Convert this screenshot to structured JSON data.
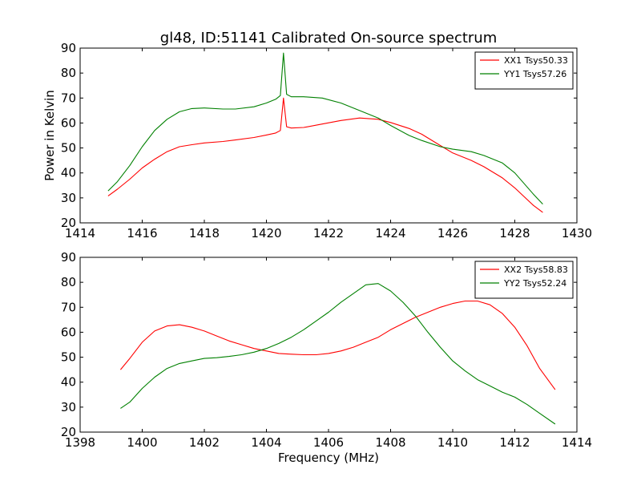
{
  "title": "gl48, ID:51141 Calibrated On-source spectrum",
  "ylabel": "Power in Kelvin",
  "xlabel": "Frequency (MHz)",
  "chart_data": [
    {
      "type": "line",
      "title": "gl48, ID:51141 Calibrated On-source spectrum",
      "ylabel": "Power in Kelvin",
      "xlabel": "",
      "xlim": [
        1414,
        1430
      ],
      "ylim": [
        20,
        90
      ],
      "xticks": [
        "1414",
        "1416",
        "1418",
        "1420",
        "1422",
        "1424",
        "1426",
        "1428",
        "1430"
      ],
      "yticks": [
        "20",
        "30",
        "40",
        "50",
        "60",
        "70",
        "80",
        "90"
      ],
      "legend_position": "top-right",
      "series": [
        {
          "name": "XX1 Tsys50.33",
          "color": "#ff0000",
          "points": [
            [
              1414.9,
              30.8
            ],
            [
              1415.2,
              33.5
            ],
            [
              1415.6,
              37.5
            ],
            [
              1416.0,
              42.0
            ],
            [
              1416.4,
              45.5
            ],
            [
              1416.8,
              48.5
            ],
            [
              1417.2,
              50.5
            ],
            [
              1417.6,
              51.3
            ],
            [
              1418.0,
              52.0
            ],
            [
              1418.6,
              52.6
            ],
            [
              1419.0,
              53.2
            ],
            [
              1419.6,
              54.2
            ],
            [
              1420.0,
              55.2
            ],
            [
              1420.3,
              56.0
            ],
            [
              1420.45,
              57.0
            ],
            [
              1420.55,
              70.0
            ],
            [
              1420.65,
              58.5
            ],
            [
              1420.8,
              58.0
            ],
            [
              1421.2,
              58.2
            ],
            [
              1421.8,
              59.6
            ],
            [
              1422.4,
              61.0
            ],
            [
              1423.0,
              62.0
            ],
            [
              1423.6,
              61.5
            ],
            [
              1424.0,
              60.2
            ],
            [
              1424.6,
              57.8
            ],
            [
              1425.0,
              55.5
            ],
            [
              1425.6,
              51.0
            ],
            [
              1426.0,
              48.0
            ],
            [
              1426.6,
              45.0
            ],
            [
              1427.0,
              42.5
            ],
            [
              1427.6,
              38.0
            ],
            [
              1428.0,
              34.0
            ],
            [
              1428.6,
              27.0
            ],
            [
              1428.9,
              24.2
            ]
          ]
        },
        {
          "name": "YY1 Tsys57.26",
          "color": "#008000",
          "points": [
            [
              1414.9,
              32.8
            ],
            [
              1415.2,
              36.5
            ],
            [
              1415.6,
              43.0
            ],
            [
              1416.0,
              50.5
            ],
            [
              1416.4,
              57.0
            ],
            [
              1416.8,
              61.5
            ],
            [
              1417.2,
              64.5
            ],
            [
              1417.6,
              65.8
            ],
            [
              1418.0,
              66.0
            ],
            [
              1418.6,
              65.6
            ],
            [
              1419.0,
              65.6
            ],
            [
              1419.6,
              66.5
            ],
            [
              1420.0,
              68.0
            ],
            [
              1420.3,
              69.5
            ],
            [
              1420.45,
              71.0
            ],
            [
              1420.55,
              88.0
            ],
            [
              1420.65,
              71.5
            ],
            [
              1420.8,
              70.5
            ],
            [
              1421.2,
              70.5
            ],
            [
              1421.8,
              70.0
            ],
            [
              1422.4,
              68.0
            ],
            [
              1423.0,
              65.0
            ],
            [
              1423.6,
              62.0
            ],
            [
              1424.0,
              59.0
            ],
            [
              1424.6,
              55.0
            ],
            [
              1425.0,
              53.0
            ],
            [
              1425.6,
              50.5
            ],
            [
              1426.0,
              49.5
            ],
            [
              1426.6,
              48.5
            ],
            [
              1427.0,
              47.0
            ],
            [
              1427.6,
              44.0
            ],
            [
              1428.0,
              40.0
            ],
            [
              1428.6,
              31.5
            ],
            [
              1428.9,
              27.5
            ]
          ]
        }
      ]
    },
    {
      "type": "line",
      "title": "",
      "ylabel": "",
      "xlabel": "Frequency (MHz)",
      "xlim": [
        1398,
        1414
      ],
      "ylim": [
        20,
        90
      ],
      "xticks": [
        "1398",
        "1400",
        "1402",
        "1404",
        "1406",
        "1408",
        "1410",
        "1412",
        "1414"
      ],
      "yticks": [
        "20",
        "30",
        "40",
        "50",
        "60",
        "70",
        "80",
        "90"
      ],
      "legend_position": "top-right",
      "series": [
        {
          "name": "XX2 Tsys58.83",
          "color": "#ff0000",
          "points": [
            [
              1399.3,
              45.0
            ],
            [
              1399.6,
              49.5
            ],
            [
              1400.0,
              56.0
            ],
            [
              1400.4,
              60.5
            ],
            [
              1400.8,
              62.5
            ],
            [
              1401.2,
              63.0
            ],
            [
              1401.6,
              62.0
            ],
            [
              1402.0,
              60.5
            ],
            [
              1402.4,
              58.5
            ],
            [
              1402.8,
              56.5
            ],
            [
              1403.2,
              55.0
            ],
            [
              1403.6,
              53.5
            ],
            [
              1404.0,
              52.5
            ],
            [
              1404.4,
              51.5
            ],
            [
              1404.8,
              51.2
            ],
            [
              1405.2,
              51.0
            ],
            [
              1405.6,
              51.0
            ],
            [
              1406.0,
              51.5
            ],
            [
              1406.4,
              52.5
            ],
            [
              1406.8,
              54.0
            ],
            [
              1407.2,
              56.0
            ],
            [
              1407.6,
              58.0
            ],
            [
              1408.0,
              61.0
            ],
            [
              1408.4,
              63.5
            ],
            [
              1408.8,
              66.0
            ],
            [
              1409.2,
              68.0
            ],
            [
              1409.6,
              70.0
            ],
            [
              1410.0,
              71.5
            ],
            [
              1410.4,
              72.5
            ],
            [
              1410.8,
              72.5
            ],
            [
              1411.2,
              71.0
            ],
            [
              1411.6,
              67.5
            ],
            [
              1412.0,
              62.0
            ],
            [
              1412.4,
              54.5
            ],
            [
              1412.8,
              45.5
            ],
            [
              1413.3,
              37.0
            ]
          ]
        },
        {
          "name": "YY2 Tsys52.24",
          "color": "#008000",
          "points": [
            [
              1399.3,
              29.5
            ],
            [
              1399.6,
              32.0
            ],
            [
              1400.0,
              37.5
            ],
            [
              1400.4,
              42.0
            ],
            [
              1400.8,
              45.5
            ],
            [
              1401.2,
              47.5
            ],
            [
              1401.6,
              48.5
            ],
            [
              1402.0,
              49.5
            ],
            [
              1402.4,
              49.8
            ],
            [
              1402.8,
              50.3
            ],
            [
              1403.2,
              51.0
            ],
            [
              1403.6,
              52.0
            ],
            [
              1404.0,
              53.5
            ],
            [
              1404.4,
              55.5
            ],
            [
              1404.8,
              58.0
            ],
            [
              1405.2,
              61.0
            ],
            [
              1405.6,
              64.5
            ],
            [
              1406.0,
              68.0
            ],
            [
              1406.4,
              72.0
            ],
            [
              1406.8,
              75.5
            ],
            [
              1407.2,
              79.0
            ],
            [
              1407.6,
              79.5
            ],
            [
              1408.0,
              76.5
            ],
            [
              1408.4,
              72.0
            ],
            [
              1408.8,
              66.5
            ],
            [
              1409.2,
              60.0
            ],
            [
              1409.6,
              54.0
            ],
            [
              1410.0,
              48.5
            ],
            [
              1410.4,
              44.5
            ],
            [
              1410.8,
              41.0
            ],
            [
              1411.2,
              38.5
            ],
            [
              1411.6,
              36.0
            ],
            [
              1412.0,
              34.0
            ],
            [
              1412.4,
              31.0
            ],
            [
              1412.8,
              27.5
            ],
            [
              1413.3,
              23.2
            ]
          ]
        }
      ]
    }
  ]
}
